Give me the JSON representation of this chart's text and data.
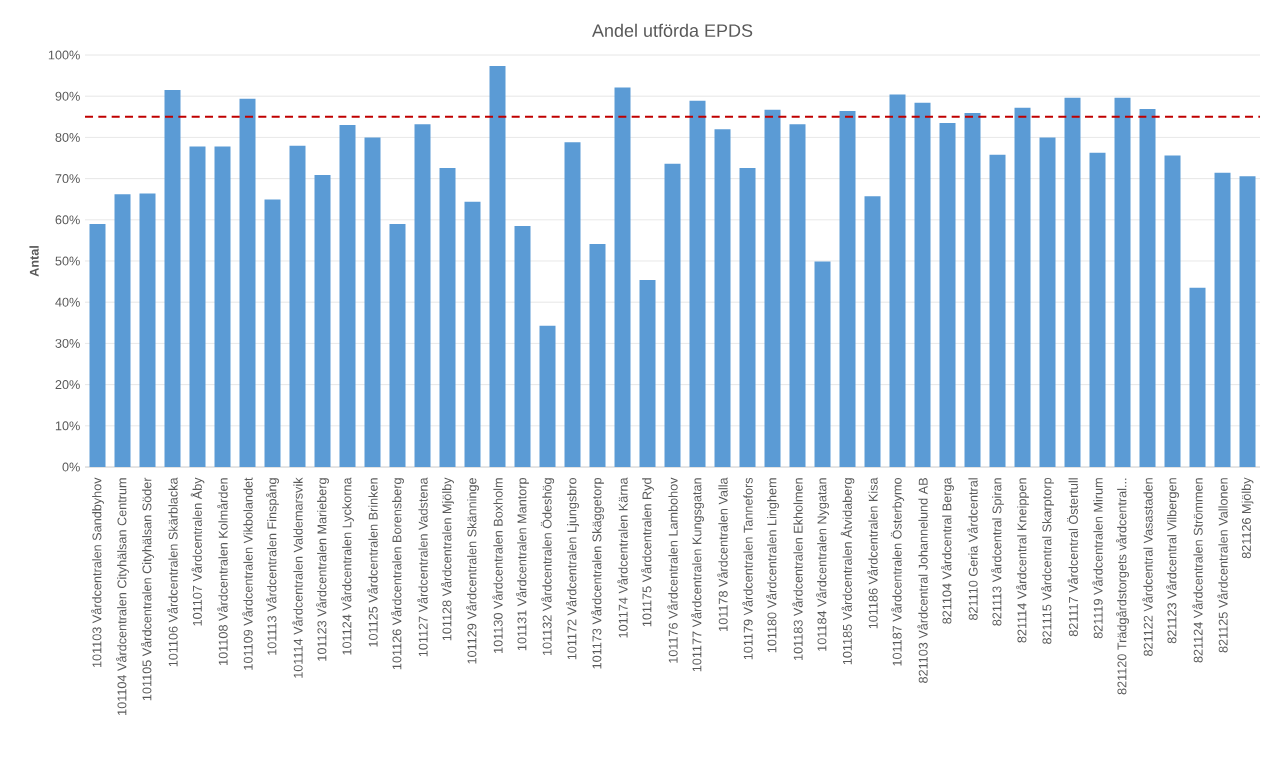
{
  "chart_data": {
    "type": "bar",
    "title": "Andel utförda EPDS",
    "ylabel": "Antal",
    "categories": [
      "101103 Vårdcentralen Sandbyhov",
      "101104 Vårdcentralen Cityhälsan Centrum",
      "101105 Vårdcentralen Cityhälsan Söder",
      "101106 Vårdcentralen Skärblacka",
      "101107 Vårdcentralen Åby",
      "101108 Vårdcentralen Kolmården",
      "101109 Vårdcentralen Vikbolandet",
      "101113 Vårdcentralen Finspång",
      "101114 Vårdcentralen Valdemarsvik",
      "101123 Vårdcentralen Marieberg",
      "101124 Vårdcentralen Lyckorna",
      "101125 Vårdcentralen Brinken",
      "101126 Vårdcentralen Borensberg",
      "101127 Vårdcentralen Vadstena",
      "101128 Vårdcentralen Mjölby",
      "101129 Vårdcentralen Skänninge",
      "101130 Vårdcentralen Boxholm",
      "101131 Vårdcentralen Mantorp",
      "101132 Vårdcentralen Ödeshög",
      "101172 Vårdcentralen Ljungsbro",
      "101173 Vårdcentralen Skäggetorp",
      "101174 Vårdcentralen Kärna",
      "101175 Vårdcentralen Ryd",
      "101176 Vårdcentralen Lambohov",
      "101177 Vårdcentralen Kungsgatan",
      "101178 Vårdcentralen Valla",
      "101179 Vårdcentralen Tannefors",
      "101180 Vårdcentralen Linghem",
      "101183 Vårdcentralen Ekholmen",
      "101184 Vårdcentralen Nygatan",
      "101185 Vårdcentralen Åtvidaberg",
      "101186 Vårdcentralen Kisa",
      "101187 Vårdcentralen Österbymo",
      "821103 Vårdcentral Johannelund AB",
      "821104 Vårdcentral Berga",
      "821110 Geria Vårdcentral",
      "821113 Vårdcentral Spiran",
      "821114 Vårdcentral Kneippen",
      "821115 Vårdcentral Skarptorp",
      "821117 Vårdcentral Östertull",
      "821119 Vårdcentralen Mirum",
      "821120 Trädgårdstorgets vårdcentral...",
      "821122 Vårdcentral Vasastaden",
      "821123 Vårdcentral Vilbergen",
      "821124 Vårdcentralen Strömmen",
      "821125 Vårdcentralen Vallonen",
      "821126 Mjölby"
    ],
    "values": [
      59.0,
      66.2,
      66.4,
      91.5,
      77.8,
      77.8,
      89.4,
      64.9,
      78.0,
      70.9,
      83.0,
      80.0,
      59.0,
      83.2,
      72.6,
      64.4,
      97.3,
      58.5,
      34.3,
      78.8,
      54.1,
      92.1,
      45.4,
      73.6,
      88.9,
      82.0,
      72.6,
      86.7,
      83.2,
      49.9,
      86.4,
      65.7,
      90.4,
      88.4,
      83.5,
      85.9,
      75.8,
      87.2,
      80.0,
      89.6,
      76.3,
      89.6,
      86.9,
      75.6,
      43.5,
      71.4,
      70.6
    ],
    "color": "#5b9bd5",
    "ylim": [
      0,
      100
    ],
    "yticks": [
      {
        "value": 0,
        "label": "0%"
      },
      {
        "value": 10,
        "label": "10%"
      },
      {
        "value": 20,
        "label": "20%"
      },
      {
        "value": 30,
        "label": "30%"
      },
      {
        "value": 40,
        "label": "40%"
      },
      {
        "value": 50,
        "label": "50%"
      },
      {
        "value": 60,
        "label": "60%"
      },
      {
        "value": 70,
        "label": "70%"
      },
      {
        "value": 80,
        "label": "80%"
      },
      {
        "value": 90,
        "label": "90%"
      },
      {
        "value": 100,
        "label": "100%"
      }
    ],
    "grid": "y",
    "ref_lines": [
      {
        "axis": "y",
        "value": 85,
        "color": "#c00000",
        "line_style": "dashed"
      }
    ]
  }
}
